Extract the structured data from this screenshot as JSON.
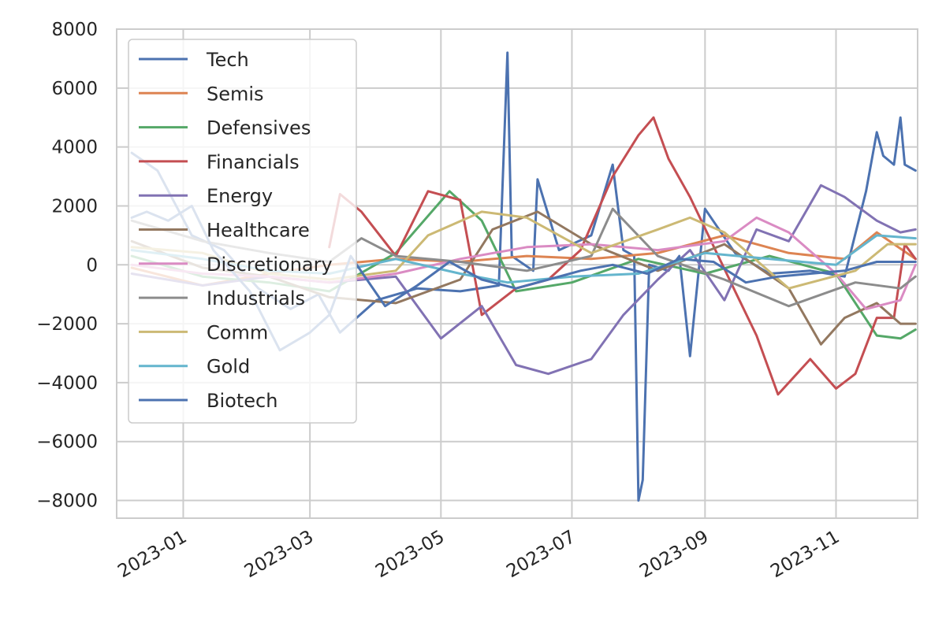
{
  "chart_data": {
    "type": "line",
    "title": "",
    "xlabel": "",
    "ylabel": "",
    "grid": true,
    "legend_position": "upper-left",
    "x_range": [
      "2022-12-01",
      "2023-12-09"
    ],
    "ylim": [
      -8600,
      8000
    ],
    "x_ticks": [
      {
        "date": "2023-01-01",
        "label": "2023-01"
      },
      {
        "date": "2023-03-01",
        "label": "2023-03"
      },
      {
        "date": "2023-05-01",
        "label": "2023-05"
      },
      {
        "date": "2023-07-01",
        "label": "2023-07"
      },
      {
        "date": "2023-09-01",
        "label": "2023-09"
      },
      {
        "date": "2023-11-01",
        "label": "2023-11"
      }
    ],
    "y_ticks": [
      {
        "value": 8000,
        "label": "8000"
      },
      {
        "value": 6000,
        "label": "6000"
      },
      {
        "value": 4000,
        "label": "4000"
      },
      {
        "value": 2000,
        "label": "2000"
      },
      {
        "value": 0,
        "label": "0"
      },
      {
        "value": -2000,
        "label": "−2000"
      },
      {
        "value": -4000,
        "label": "−4000"
      },
      {
        "value": -6000,
        "label": "−6000"
      },
      {
        "value": -8000,
        "label": "−8000"
      }
    ],
    "series": [
      {
        "name": "Tech",
        "color": "#4c72b0",
        "points": [
          [
            "2022-12-08",
            3800
          ],
          [
            "2022-12-20",
            3200
          ],
          [
            "2023-01-05",
            1000
          ],
          [
            "2023-01-20",
            500
          ],
          [
            "2023-02-05",
            -800
          ],
          [
            "2023-02-20",
            -1500
          ],
          [
            "2023-03-05",
            -1000
          ],
          [
            "2023-03-15",
            -2300
          ],
          [
            "2023-04-01",
            -1200
          ],
          [
            "2023-04-20",
            -800
          ],
          [
            "2023-05-10",
            -900
          ],
          [
            "2023-05-28",
            -700
          ],
          [
            "2023-06-01",
            7200
          ],
          [
            "2023-06-03",
            300
          ],
          [
            "2023-06-13",
            -200
          ],
          [
            "2023-06-15",
            2900
          ],
          [
            "2023-06-25",
            500
          ],
          [
            "2023-07-10",
            1000
          ],
          [
            "2023-07-20",
            3400
          ],
          [
            "2023-07-25",
            500
          ],
          [
            "2023-07-30",
            300
          ],
          [
            "2023-08-01",
            -8000
          ],
          [
            "2023-08-03",
            -7300
          ],
          [
            "2023-08-06",
            0
          ],
          [
            "2023-08-15",
            -200
          ],
          [
            "2023-08-20",
            300
          ],
          [
            "2023-08-25",
            -3100
          ],
          [
            "2023-09-01",
            1900
          ],
          [
            "2023-09-15",
            400
          ],
          [
            "2023-10-01",
            -300
          ],
          [
            "2023-10-20",
            -200
          ],
          [
            "2023-11-05",
            -400
          ],
          [
            "2023-11-15",
            2500
          ],
          [
            "2023-11-20",
            4500
          ],
          [
            "2023-11-23",
            3700
          ],
          [
            "2023-11-28",
            3400
          ],
          [
            "2023-12-01",
            5000
          ],
          [
            "2023-12-03",
            3400
          ],
          [
            "2023-12-08",
            3200
          ]
        ]
      },
      {
        "name": "Semis",
        "color": "#dd8452",
        "points": [
          [
            "2022-12-08",
            -100
          ],
          [
            "2023-01-10",
            -700
          ],
          [
            "2023-02-10",
            -300
          ],
          [
            "2023-03-10",
            0
          ],
          [
            "2023-04-10",
            200
          ],
          [
            "2023-05-10",
            100
          ],
          [
            "2023-06-10",
            300
          ],
          [
            "2023-07-10",
            200
          ],
          [
            "2023-08-10",
            400
          ],
          [
            "2023-09-10",
            1000
          ],
          [
            "2023-10-10",
            400
          ],
          [
            "2023-11-05",
            200
          ],
          [
            "2023-11-20",
            1100
          ],
          [
            "2023-12-08",
            200
          ]
        ]
      },
      {
        "name": "Defensives",
        "color": "#55a868",
        "points": [
          [
            "2022-12-08",
            300
          ],
          [
            "2023-01-10",
            -400
          ],
          [
            "2023-02-10",
            -600
          ],
          [
            "2023-03-10",
            -900
          ],
          [
            "2023-04-10",
            400
          ],
          [
            "2023-05-05",
            2500
          ],
          [
            "2023-05-20",
            1500
          ],
          [
            "2023-06-05",
            -900
          ],
          [
            "2023-07-01",
            -600
          ],
          [
            "2023-08-01",
            200
          ],
          [
            "2023-09-01",
            -300
          ],
          [
            "2023-10-01",
            300
          ],
          [
            "2023-11-01",
            -300
          ],
          [
            "2023-11-20",
            -2400
          ],
          [
            "2023-12-01",
            -2500
          ],
          [
            "2023-12-08",
            -2200
          ]
        ]
      },
      {
        "name": "Financials",
        "color": "#c44e52",
        "points": [
          [
            "2023-03-10",
            600
          ],
          [
            "2023-03-15",
            2400
          ],
          [
            "2023-03-25",
            1800
          ],
          [
            "2023-04-10",
            300
          ],
          [
            "2023-04-25",
            2500
          ],
          [
            "2023-05-10",
            2200
          ],
          [
            "2023-05-20",
            -1700
          ],
          [
            "2023-06-05",
            -800
          ],
          [
            "2023-06-20",
            -500
          ],
          [
            "2023-07-05",
            500
          ],
          [
            "2023-07-20",
            3000
          ],
          [
            "2023-08-01",
            4400
          ],
          [
            "2023-08-08",
            5000
          ],
          [
            "2023-08-15",
            3600
          ],
          [
            "2023-08-25",
            2300
          ],
          [
            "2023-09-15",
            -900
          ],
          [
            "2023-09-25",
            -2400
          ],
          [
            "2023-10-05",
            -4400
          ],
          [
            "2023-10-20",
            -3200
          ],
          [
            "2023-11-01",
            -4200
          ],
          [
            "2023-11-10",
            -3700
          ],
          [
            "2023-11-20",
            -1800
          ],
          [
            "2023-11-28",
            -1800
          ],
          [
            "2023-12-03",
            700
          ],
          [
            "2023-12-08",
            200
          ]
        ]
      },
      {
        "name": "Energy",
        "color": "#8172b3",
        "points": [
          [
            "2022-12-08",
            -300
          ],
          [
            "2023-01-10",
            -700
          ],
          [
            "2023-02-10",
            -400
          ],
          [
            "2023-03-10",
            -600
          ],
          [
            "2023-04-10",
            -400
          ],
          [
            "2023-05-01",
            -2500
          ],
          [
            "2023-05-20",
            -1400
          ],
          [
            "2023-06-05",
            -3400
          ],
          [
            "2023-06-20",
            -3700
          ],
          [
            "2023-07-10",
            -3200
          ],
          [
            "2023-07-25",
            -1700
          ],
          [
            "2023-08-10",
            -500
          ],
          [
            "2023-08-25",
            500
          ],
          [
            "2023-09-10",
            -1200
          ],
          [
            "2023-09-25",
            1200
          ],
          [
            "2023-10-10",
            800
          ],
          [
            "2023-10-25",
            2700
          ],
          [
            "2023-11-05",
            2300
          ],
          [
            "2023-11-20",
            1500
          ],
          [
            "2023-12-01",
            1100
          ],
          [
            "2023-12-08",
            1200
          ]
        ]
      },
      {
        "name": "Healthcare",
        "color": "#937860",
        "points": [
          [
            "2022-12-08",
            800
          ],
          [
            "2023-01-10",
            -100
          ],
          [
            "2023-02-10",
            -400
          ],
          [
            "2023-03-10",
            -1100
          ],
          [
            "2023-04-10",
            -1300
          ],
          [
            "2023-05-10",
            -500
          ],
          [
            "2023-05-25",
            1200
          ],
          [
            "2023-06-15",
            1800
          ],
          [
            "2023-07-10",
            700
          ],
          [
            "2023-08-10",
            -200
          ],
          [
            "2023-09-10",
            700
          ],
          [
            "2023-10-10",
            -800
          ],
          [
            "2023-10-25",
            -2700
          ],
          [
            "2023-11-05",
            -1800
          ],
          [
            "2023-11-20",
            -1300
          ],
          [
            "2023-12-01",
            -2000
          ],
          [
            "2023-12-08",
            -2000
          ]
        ]
      },
      {
        "name": "Discretionary",
        "color": "#da8bc3",
        "points": [
          [
            "2022-12-08",
            0
          ],
          [
            "2023-01-10",
            -300
          ],
          [
            "2023-02-10",
            -400
          ],
          [
            "2023-03-10",
            -600
          ],
          [
            "2023-04-10",
            -300
          ],
          [
            "2023-05-10",
            200
          ],
          [
            "2023-06-10",
            600
          ],
          [
            "2023-07-10",
            700
          ],
          [
            "2023-08-10",
            500
          ],
          [
            "2023-09-10",
            800
          ],
          [
            "2023-09-25",
            1600
          ],
          [
            "2023-10-10",
            1100
          ],
          [
            "2023-11-01",
            -300
          ],
          [
            "2023-11-15",
            -1500
          ],
          [
            "2023-12-01",
            -1200
          ],
          [
            "2023-12-08",
            0
          ]
        ]
      },
      {
        "name": "Industrials",
        "color": "#8c8c8c",
        "points": [
          [
            "2022-12-08",
            1500
          ],
          [
            "2023-01-10",
            800
          ],
          [
            "2023-02-10",
            400
          ],
          [
            "2023-03-10",
            100
          ],
          [
            "2023-03-25",
            900
          ],
          [
            "2023-04-10",
            300
          ],
          [
            "2023-05-10",
            100
          ],
          [
            "2023-06-10",
            -200
          ],
          [
            "2023-07-10",
            300
          ],
          [
            "2023-07-20",
            1900
          ],
          [
            "2023-08-10",
            300
          ],
          [
            "2023-09-10",
            -500
          ],
          [
            "2023-10-10",
            -1400
          ],
          [
            "2023-11-10",
            -600
          ],
          [
            "2023-12-01",
            -800
          ],
          [
            "2023-12-08",
            -400
          ]
        ]
      },
      {
        "name": "Comm",
        "color": "#ccb974",
        "points": [
          [
            "2022-12-08",
            600
          ],
          [
            "2023-01-10",
            400
          ],
          [
            "2023-02-10",
            -300
          ],
          [
            "2023-03-10",
            -500
          ],
          [
            "2023-04-10",
            -200
          ],
          [
            "2023-04-25",
            1000
          ],
          [
            "2023-05-20",
            1800
          ],
          [
            "2023-06-10",
            1600
          ],
          [
            "2023-07-10",
            400
          ],
          [
            "2023-08-10",
            1200
          ],
          [
            "2023-08-25",
            1600
          ],
          [
            "2023-09-10",
            1100
          ],
          [
            "2023-10-10",
            -800
          ],
          [
            "2023-11-10",
            -200
          ],
          [
            "2023-11-25",
            700
          ],
          [
            "2023-12-08",
            700
          ]
        ]
      },
      {
        "name": "Gold",
        "color": "#64b5cd",
        "points": [
          [
            "2022-12-08",
            500
          ],
          [
            "2023-01-10",
            200
          ],
          [
            "2023-02-10",
            -200
          ],
          [
            "2023-03-10",
            -300
          ],
          [
            "2023-04-10",
            200
          ],
          [
            "2023-05-10",
            -300
          ],
          [
            "2023-06-01",
            -600
          ],
          [
            "2023-07-01",
            -400
          ],
          [
            "2023-08-01",
            -300
          ],
          [
            "2023-09-01",
            400
          ],
          [
            "2023-10-01",
            200
          ],
          [
            "2023-11-01",
            0
          ],
          [
            "2023-11-20",
            1000
          ],
          [
            "2023-12-08",
            900
          ]
        ]
      },
      {
        "name": "Biotech",
        "color": "#4c72b0",
        "points": [
          [
            "2022-12-08",
            1600
          ],
          [
            "2022-12-15",
            1800
          ],
          [
            "2022-12-25",
            1500
          ],
          [
            "2023-01-05",
            2000
          ],
          [
            "2023-01-15",
            500
          ],
          [
            "2023-02-01",
            -900
          ],
          [
            "2023-02-15",
            -2900
          ],
          [
            "2023-03-01",
            -2300
          ],
          [
            "2023-03-10",
            -1700
          ],
          [
            "2023-03-20",
            300
          ],
          [
            "2023-04-05",
            -1400
          ],
          [
            "2023-04-20",
            -700
          ],
          [
            "2023-05-05",
            100
          ],
          [
            "2023-05-20",
            -500
          ],
          [
            "2023-06-05",
            -800
          ],
          [
            "2023-06-20",
            -500
          ],
          [
            "2023-07-05",
            -200
          ],
          [
            "2023-07-20",
            0
          ],
          [
            "2023-08-05",
            -300
          ],
          [
            "2023-08-20",
            200
          ],
          [
            "2023-09-05",
            100
          ],
          [
            "2023-09-20",
            -600
          ],
          [
            "2023-10-05",
            -400
          ],
          [
            "2023-10-20",
            -300
          ],
          [
            "2023-11-05",
            -200
          ],
          [
            "2023-11-20",
            100
          ],
          [
            "2023-12-08",
            100
          ]
        ]
      }
    ]
  }
}
